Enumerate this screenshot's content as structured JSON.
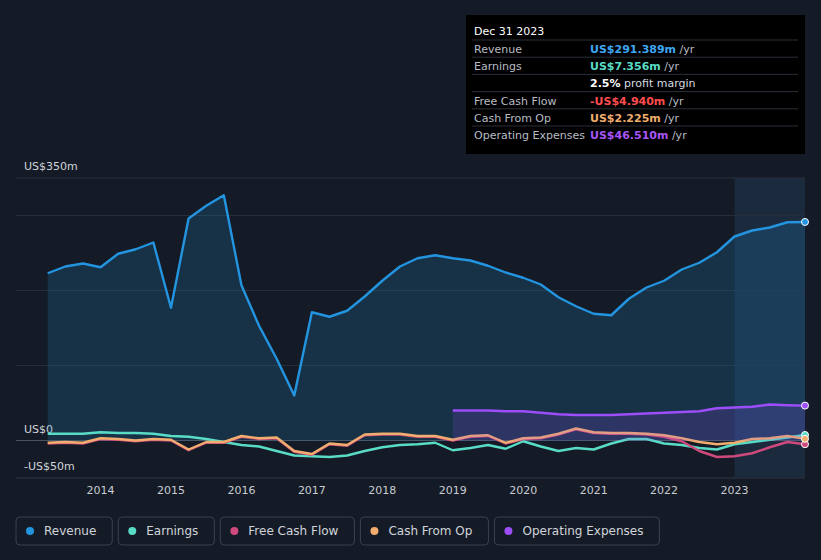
{
  "chart_data": {
    "type": "line",
    "x": [
      2013.25,
      2013.5,
      2013.75,
      2014,
      2014.25,
      2014.5,
      2014.75,
      2015,
      2015.25,
      2015.5,
      2015.75,
      2016,
      2016.25,
      2016.5,
      2016.75,
      2017,
      2017.25,
      2017.5,
      2017.75,
      2018,
      2018.25,
      2018.5,
      2018.75,
      2019,
      2019.25,
      2019.5,
      2019.75,
      2020,
      2020.25,
      2020.5,
      2020.75,
      2021,
      2021.25,
      2021.5,
      2021.75,
      2022,
      2022.25,
      2022.5,
      2022.75,
      2023,
      2023.25,
      2023.5,
      2023.75,
      2024
    ],
    "xlim": [
      2012.8,
      2024
    ],
    "xticks": [
      2014,
      2015,
      2016,
      2017,
      2018,
      2019,
      2020,
      2021,
      2022,
      2023
    ],
    "ylim": [
      -50,
      350
    ],
    "yticks": [
      {
        "value": -50,
        "label": "-US$50m"
      },
      {
        "value": 0,
        "label": "US$0"
      },
      {
        "value": 100,
        "label": null
      },
      {
        "value": 200,
        "label": null
      },
      {
        "value": 300,
        "label": null
      },
      {
        "value": 350,
        "label": "US$350m"
      }
    ],
    "grid": true,
    "legend": "bottom",
    "shaded_x": [
      2023,
      2024
    ],
    "series": [
      {
        "name": "Revenue",
        "color": "#2394df",
        "values": [
          223,
          232,
          236,
          231,
          249,
          255,
          264,
          177,
          296,
          313,
          327,
          207,
          153,
          109,
          60,
          171,
          165,
          173,
          192,
          213,
          232,
          243,
          247,
          243,
          240,
          233,
          224,
          217,
          208,
          191,
          179,
          169,
          167,
          189,
          204,
          213,
          228,
          237,
          251,
          272,
          280,
          284,
          291,
          291.389
        ]
      },
      {
        "name": "Earnings",
        "color": "#59dcc6",
        "values": [
          9,
          9,
          9,
          11,
          10,
          10,
          9,
          6,
          5,
          2,
          -2,
          -6,
          -8,
          -14,
          -20,
          -21,
          -22,
          -20,
          -14,
          -9,
          -6,
          -5,
          -3,
          -13,
          -10,
          -6,
          -11,
          -1,
          -8,
          -14,
          -10,
          -12,
          -4,
          2,
          2,
          -4,
          -6,
          -10,
          -12,
          -5,
          -2,
          1,
          4,
          7.356
        ]
      },
      {
        "name": "Free Cash Flow",
        "color": "#cf4a7c",
        "values": [
          -4,
          -3,
          -4,
          2,
          1,
          -1,
          1,
          0,
          -13,
          -3,
          -3,
          5,
          2,
          3,
          -15,
          -19,
          -5,
          -7,
          7,
          8,
          8,
          5,
          5,
          0,
          5,
          6,
          -4,
          2,
          3,
          8,
          15,
          10,
          9,
          9,
          8,
          5,
          -1,
          -14,
          -22,
          -21,
          -17,
          -9,
          -2,
          -4.94
        ]
      },
      {
        "name": "Cash From Op",
        "color": "#f0ad6e",
        "values": [
          -3,
          -2,
          -3,
          3,
          2,
          0,
          2,
          1,
          -12,
          -2,
          -2,
          6,
          3,
          4,
          -14,
          -18,
          -4,
          -6,
          8,
          9,
          9,
          6,
          6,
          1,
          6,
          7,
          -3,
          3,
          4,
          9,
          16,
          11,
          10,
          10,
          9,
          7,
          3,
          -2,
          -5,
          -3,
          2,
          3,
          6,
          2.225
        ]
      },
      {
        "name": "Operating Expenses",
        "color": "#9d4dfa",
        "values": [
          null,
          null,
          null,
          null,
          null,
          null,
          null,
          null,
          null,
          null,
          null,
          null,
          null,
          null,
          null,
          null,
          null,
          null,
          null,
          null,
          null,
          null,
          null,
          40,
          40,
          40,
          39,
          39,
          37,
          35,
          34,
          34,
          34,
          35,
          36,
          37,
          38,
          39,
          43,
          44,
          45,
          48,
          47,
          46.51
        ]
      }
    ],
    "tooltip": {
      "title": "Dec 31 2023",
      "rows": [
        {
          "label": "Revenue",
          "value": "US$291.389m",
          "suffix": " /yr",
          "color": "#3ea6f0"
        },
        {
          "label": "Earnings",
          "value": "US$7.356m",
          "suffix": " /yr",
          "color": "#59dcc6"
        },
        {
          "label": null,
          "value": "2.5%",
          "suffix": " profit margin",
          "color": "#ffffff"
        },
        {
          "label": "Free Cash Flow",
          "value": "-US$4.940m",
          "suffix": " /yr",
          "color": "#ff4d4d"
        },
        {
          "label": "Cash From Op",
          "value": "US$2.225m",
          "suffix": " /yr",
          "color": "#f0ad6e"
        },
        {
          "label": "Operating Expenses",
          "value": "US$46.510m",
          "suffix": " /yr",
          "color": "#a855f7"
        }
      ]
    }
  }
}
